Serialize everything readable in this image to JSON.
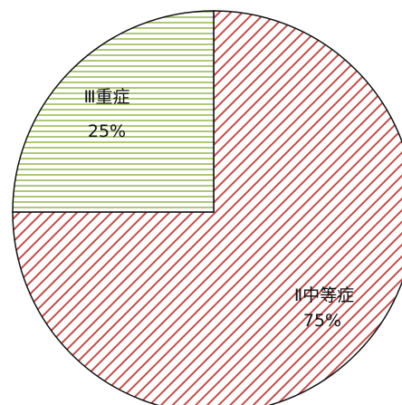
{
  "chart_data": {
    "type": "pie",
    "categories": [
      "Ⅱ中等症",
      "Ⅲ重症"
    ],
    "values": [
      75,
      25
    ],
    "value_labels": [
      "75%",
      "25%"
    ],
    "title": "",
    "legend": "none",
    "colors": {
      "moderate_hatch": "#c0504d",
      "severe_hatch": "#9bbb59",
      "outline": "#111111",
      "background": "#ffffff"
    }
  }
}
